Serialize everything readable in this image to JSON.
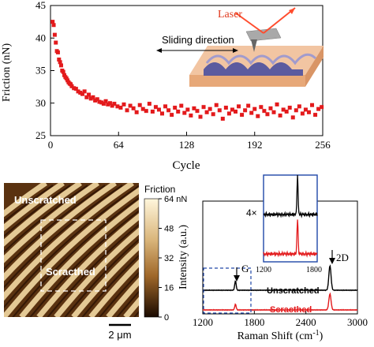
{
  "chart_data": [
    {
      "type": "scatter",
      "xlabel": "Cycle",
      "ylabel": "Friction (nN)",
      "xlim": [
        0,
        256
      ],
      "ylim": [
        25,
        45
      ],
      "xticks": [
        "0",
        "64",
        "128",
        "192",
        "256"
      ],
      "yticks": [
        "25",
        "30",
        "35",
        "40",
        "45"
      ],
      "series": [
        {
          "color": "#e31a1c",
          "x": [
            2,
            3,
            4,
            5,
            6,
            7,
            8,
            9,
            10,
            11,
            12,
            13,
            14,
            15,
            16,
            17,
            18,
            19,
            20,
            22,
            24,
            26,
            28,
            30,
            32,
            34,
            36,
            38,
            40,
            42,
            44,
            46,
            48,
            50,
            52,
            54,
            56,
            58,
            60,
            63,
            66,
            69,
            72,
            75,
            78,
            81,
            84,
            87,
            90,
            93,
            96,
            99,
            102,
            105,
            108,
            111,
            114,
            117,
            120,
            123,
            126,
            129,
            132,
            135,
            138,
            141,
            144,
            147,
            150,
            153,
            156,
            159,
            162,
            165,
            168,
            171,
            174,
            177,
            180,
            183,
            186,
            189,
            192,
            195,
            198,
            201,
            204,
            207,
            210,
            213,
            216,
            219,
            222,
            225,
            228,
            231,
            234,
            237,
            240,
            243,
            246,
            249,
            252,
            255
          ],
          "y": [
            42.5,
            42.0,
            40.5,
            39.3,
            38.0,
            37.8,
            36.7,
            36.3,
            35.8,
            35.0,
            34.8,
            34.3,
            34.0,
            33.8,
            33.5,
            33.2,
            33.0,
            32.9,
            32.6,
            32.3,
            32.2,
            31.8,
            31.6,
            31.4,
            31.8,
            30.9,
            31.3,
            30.7,
            30.9,
            30.4,
            30.6,
            30.2,
            30.1,
            29.9,
            30.3,
            29.8,
            30.0,
            29.6,
            29.9,
            29.5,
            29.3,
            29.8,
            28.9,
            29.6,
            29.2,
            28.6,
            29.7,
            29.1,
            28.8,
            29.9,
            28.7,
            29.4,
            29.0,
            28.4,
            29.5,
            28.9,
            28.2,
            29.3,
            28.7,
            29.6,
            28.5,
            29.0,
            28.1,
            29.2,
            28.8,
            27.9,
            29.4,
            28.6,
            29.1,
            28.3,
            29.7,
            28.9,
            27.6,
            29.3,
            28.4,
            29.0,
            28.7,
            29.5,
            28.2,
            28.9,
            29.6,
            28.5,
            29.1,
            28.0,
            29.4,
            28.8,
            28.3,
            29.2,
            28.6,
            29.8,
            28.1,
            29.0,
            28.7,
            29.3,
            27.8,
            28.9,
            29.5,
            28.4,
            29.0,
            28.6,
            29.7,
            28.2,
            29.1,
            29.4
          ]
        }
      ]
    },
    {
      "type": "heatmap",
      "colorbar_label": "Friction",
      "colorbar_ticks": [
        "64 nN",
        "48",
        "32",
        "16",
        "0"
      ],
      "colorbar_range": [
        0,
        64
      ],
      "scale_bar": "2 μm",
      "annotations": [
        "Unscratched",
        "Scracthed"
      ]
    },
    {
      "type": "line",
      "xlabel": "Raman Shift (cm⁻¹)",
      "ylabel": "Intensity (a.u.)",
      "xlim": [
        1200,
        3000
      ],
      "xticks": [
        "1200",
        "1800",
        "2400",
        "3000"
      ],
      "peak_labels": [
        "G",
        "2D"
      ],
      "inset_label": "4×",
      "inset_xticks": [
        "1200",
        "1800"
      ],
      "series": [
        {
          "name": "Unscratched",
          "color": "#000000",
          "peaks": [
            [
              1580,
              1.0
            ],
            [
              2680,
              2.6
            ]
          ]
        },
        {
          "name": "Scracthed",
          "color": "#e31a1c",
          "peaks": [
            [
              1580,
              0.6
            ],
            [
              2680,
              1.7
            ]
          ]
        }
      ]
    }
  ],
  "schematic": {
    "laser_label": "Laser",
    "sliding_label": "Sliding direction"
  }
}
